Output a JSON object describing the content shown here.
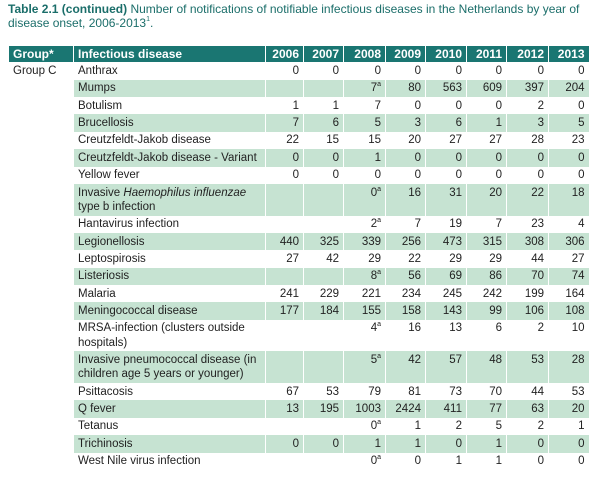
{
  "caption": {
    "label": "Table 2.1 (continued)",
    "text": "Number of notifications of notifiable infectious diseases in the Netherlands by year of disease onset, 2006-2013",
    "sup": "1",
    "tail": "."
  },
  "table": {
    "columns": [
      "Group*",
      "Infectious disease",
      "2006",
      "2007",
      "2008",
      "2009",
      "2010",
      "2011",
      "2012",
      "2013"
    ],
    "group": "Group C",
    "rows": [
      {
        "disease": "Anthrax",
        "cells": [
          0,
          0,
          0,
          0,
          0,
          0,
          0,
          0
        ]
      },
      {
        "disease": "Mumps",
        "cells": [
          null,
          null,
          {
            "value": 7,
            "note": "a"
          },
          80,
          563,
          609,
          397,
          204
        ]
      },
      {
        "disease": "Botulism",
        "cells": [
          1,
          1,
          7,
          0,
          0,
          0,
          2,
          0
        ]
      },
      {
        "disease": "Brucellosis",
        "cells": [
          7,
          6,
          5,
          3,
          6,
          1,
          3,
          5
        ]
      },
      {
        "disease": "Creutzfeldt-Jakob disease",
        "cells": [
          22,
          15,
          15,
          20,
          27,
          27,
          28,
          23
        ]
      },
      {
        "disease": "Creutzfeldt-Jakob disease - Variant",
        "cells": [
          0,
          0,
          1,
          0,
          0,
          0,
          0,
          0
        ]
      },
      {
        "disease": "Yellow fever",
        "cells": [
          0,
          0,
          0,
          0,
          0,
          0,
          0,
          0
        ]
      },
      {
        "disease": {
          "before": "Invasive",
          "italic": "Haemophilus influenzae",
          "after": "type b infection"
        },
        "cells": [
          null,
          null,
          {
            "value": 0,
            "note": "a"
          },
          16,
          31,
          20,
          22,
          18
        ]
      },
      {
        "disease": "Hantavirus infection",
        "cells": [
          null,
          null,
          {
            "value": 2,
            "note": "a"
          },
          7,
          19,
          7,
          23,
          4
        ]
      },
      {
        "disease": "Legionellosis",
        "cells": [
          440,
          325,
          339,
          256,
          473,
          315,
          308,
          306
        ]
      },
      {
        "disease": "Leptospirosis",
        "cells": [
          27,
          42,
          29,
          22,
          29,
          29,
          44,
          27
        ]
      },
      {
        "disease": "Listeriosis",
        "cells": [
          null,
          null,
          {
            "value": 8,
            "note": "a"
          },
          56,
          69,
          86,
          70,
          74
        ]
      },
      {
        "disease": "Malaria",
        "cells": [
          241,
          229,
          221,
          234,
          245,
          242,
          199,
          164
        ]
      },
      {
        "disease": "Meningococcal disease",
        "cells": [
          177,
          184,
          155,
          158,
          143,
          99,
          106,
          108
        ]
      },
      {
        "disease": "MRSA-infection (clusters outside hospitals)",
        "cells": [
          null,
          null,
          {
            "value": 4,
            "note": "a"
          },
          16,
          13,
          6,
          2,
          10
        ]
      },
      {
        "disease": "Invasive pneumococcal disease (in children age 5 years or younger)",
        "cells": [
          null,
          null,
          {
            "value": 5,
            "note": "a"
          },
          42,
          57,
          48,
          53,
          28
        ]
      },
      {
        "disease": "Psittacosis",
        "cells": [
          67,
          53,
          79,
          81,
          73,
          70,
          44,
          53
        ]
      },
      {
        "disease": "Q fever",
        "cells": [
          13,
          195,
          1003,
          2424,
          411,
          77,
          63,
          20
        ]
      },
      {
        "disease": "Tetanus",
        "cells": [
          null,
          null,
          {
            "value": 0,
            "note": "a"
          },
          1,
          2,
          5,
          2,
          1
        ]
      },
      {
        "disease": "Trichinosis",
        "cells": [
          0,
          0,
          1,
          1,
          0,
          1,
          0,
          0
        ]
      },
      {
        "disease": "West Nile virus infection",
        "cells": [
          null,
          null,
          {
            "value": 0,
            "note": "a"
          },
          0,
          1,
          1,
          0,
          0
        ]
      }
    ]
  }
}
